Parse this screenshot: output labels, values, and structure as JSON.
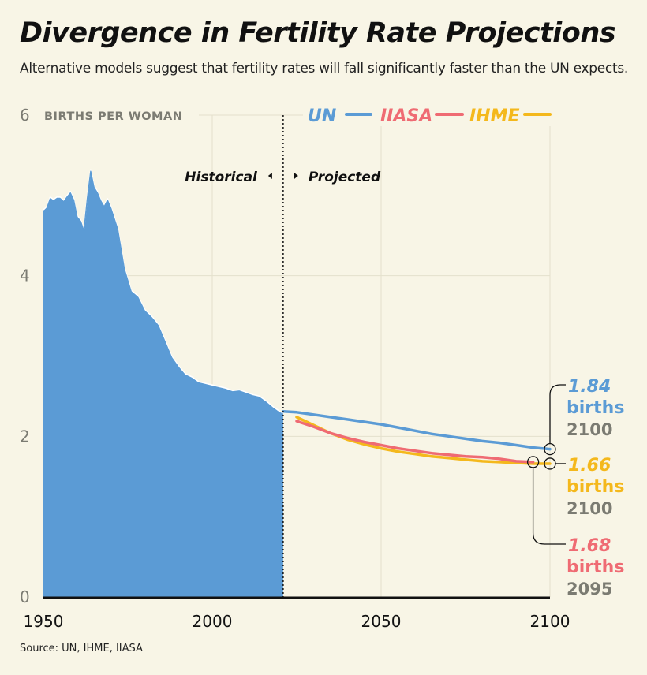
{
  "title": "Divergence in Fertility Rate Projections",
  "subtitle": "Alternative models suggest that fertility rates will fall significantly faster than the UN expects.",
  "source": "Source: UN, IHME, IIASA",
  "colors": {
    "UN": "#5b9bd5",
    "IIASA": "#ef6b73",
    "IHME": "#f4b81c",
    "grey": "#7b7b72",
    "bg": "#f8f5e6"
  },
  "chart_data": {
    "type": "area",
    "ylabel": "BIRTHS PER WOMAN",
    "xlim": [
      1950,
      2100
    ],
    "ylim": [
      0,
      6
    ],
    "x_ticks": [
      "1950",
      "2000",
      "2050",
      "2100"
    ],
    "y_ticks": [
      "0",
      "2",
      "4",
      "6"
    ],
    "divider_year": 2021,
    "annotation_left": "Historical",
    "annotation_right": "Projected",
    "legend": [
      "UN",
      "IIASA",
      "IHME"
    ],
    "series": [
      {
        "name": "Historical",
        "x": [
          1950,
          1951,
          1952,
          1953,
          1954,
          1955,
          1956,
          1957,
          1958,
          1959,
          1960,
          1961,
          1962,
          1963,
          1964,
          1965,
          1966,
          1967,
          1968,
          1969,
          1970,
          1972,
          1974,
          1976,
          1978,
          1980,
          1982,
          1984,
          1986,
          1988,
          1990,
          1992,
          1994,
          1996,
          1998,
          2000,
          2002,
          2004,
          2006,
          2008,
          2010,
          2012,
          2014,
          2016,
          2018,
          2020,
          2021
        ],
        "values": [
          4.82,
          4.86,
          4.98,
          4.95,
          4.98,
          4.98,
          4.94,
          5.0,
          5.05,
          4.96,
          4.75,
          4.7,
          4.58,
          4.98,
          5.32,
          5.12,
          5.05,
          4.95,
          4.88,
          4.96,
          4.86,
          4.6,
          4.1,
          3.82,
          3.75,
          3.58,
          3.5,
          3.4,
          3.2,
          3.0,
          2.88,
          2.78,
          2.74,
          2.68,
          2.66,
          2.64,
          2.62,
          2.6,
          2.57,
          2.58,
          2.55,
          2.52,
          2.5,
          2.44,
          2.37,
          2.31,
          2.29
        ]
      },
      {
        "name": "UN",
        "x": [
          2021,
          2025,
          2030,
          2035,
          2040,
          2045,
          2050,
          2055,
          2060,
          2065,
          2070,
          2075,
          2080,
          2085,
          2090,
          2095,
          2100
        ],
        "values": [
          2.31,
          2.3,
          2.27,
          2.24,
          2.21,
          2.18,
          2.15,
          2.11,
          2.07,
          2.03,
          2.0,
          1.97,
          1.94,
          1.92,
          1.89,
          1.86,
          1.84
        ]
      },
      {
        "name": "IIASA",
        "x": [
          2025,
          2030,
          2035,
          2040,
          2045,
          2050,
          2055,
          2060,
          2065,
          2070,
          2075,
          2080,
          2085,
          2090,
          2095
        ],
        "values": [
          2.19,
          2.12,
          2.04,
          1.98,
          1.93,
          1.89,
          1.85,
          1.82,
          1.79,
          1.77,
          1.75,
          1.74,
          1.72,
          1.69,
          1.68
        ]
      },
      {
        "name": "IHME",
        "x": [
          2025,
          2030,
          2035,
          2040,
          2045,
          2050,
          2055,
          2060,
          2065,
          2070,
          2075,
          2080,
          2085,
          2090,
          2095,
          2100
        ],
        "values": [
          2.24,
          2.14,
          2.04,
          1.96,
          1.9,
          1.85,
          1.81,
          1.78,
          1.75,
          1.73,
          1.71,
          1.69,
          1.68,
          1.67,
          1.66,
          1.66
        ]
      }
    ],
    "end_labels": [
      {
        "series": "UN",
        "value": "1.84",
        "unit": "births",
        "year": "2100",
        "at": 2100
      },
      {
        "series": "IHME",
        "value": "1.66",
        "unit": "births",
        "year": "2100",
        "at": 2100
      },
      {
        "series": "IIASA",
        "value": "1.68",
        "unit": "births",
        "year": "2095",
        "at": 2095
      }
    ]
  }
}
